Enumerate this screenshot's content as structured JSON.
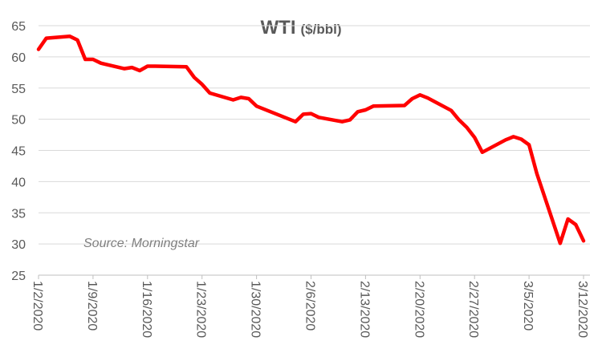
{
  "chart_data": {
    "type": "line",
    "title": "WTI",
    "title_unit": "($/bbl)",
    "xlabel": "",
    "ylabel": "",
    "annotation": "Source: Morningstar",
    "ylim": [
      25,
      65
    ],
    "y_ticks": [
      25,
      30,
      35,
      40,
      45,
      50,
      55,
      60,
      65
    ],
    "x_tick_labels": [
      "1/2/2020",
      "1/9/2020",
      "1/16/2020",
      "1/23/2020",
      "1/30/2020",
      "2/6/2020",
      "2/13/2020",
      "2/20/2020",
      "2/27/2020",
      "3/5/2020",
      "3/12/2020"
    ],
    "grid": "horizontal",
    "legend": "none",
    "series": [
      {
        "color": "#ff0000",
        "points": [
          [
            "2020-01-02",
            61.2
          ],
          [
            "2020-01-03",
            63.0
          ],
          [
            "2020-01-06",
            63.3
          ],
          [
            "2020-01-07",
            62.7
          ],
          [
            "2020-01-08",
            59.6
          ],
          [
            "2020-01-09",
            59.6
          ],
          [
            "2020-01-10",
            59.0
          ],
          [
            "2020-01-13",
            58.1
          ],
          [
            "2020-01-14",
            58.3
          ],
          [
            "2020-01-15",
            57.8
          ],
          [
            "2020-01-16",
            58.5
          ],
          [
            "2020-01-17",
            58.5
          ],
          [
            "2020-01-21",
            58.4
          ],
          [
            "2020-01-22",
            56.7
          ],
          [
            "2020-01-23",
            55.6
          ],
          [
            "2020-01-24",
            54.2
          ],
          [
            "2020-01-27",
            53.1
          ],
          [
            "2020-01-28",
            53.5
          ],
          [
            "2020-01-29",
            53.3
          ],
          [
            "2020-01-30",
            52.1
          ],
          [
            "2020-01-31",
            51.6
          ],
          [
            "2020-02-03",
            50.1
          ],
          [
            "2020-02-04",
            49.6
          ],
          [
            "2020-02-05",
            50.8
          ],
          [
            "2020-02-06",
            50.9
          ],
          [
            "2020-02-07",
            50.3
          ],
          [
            "2020-02-10",
            49.6
          ],
          [
            "2020-02-11",
            49.9
          ],
          [
            "2020-02-12",
            51.2
          ],
          [
            "2020-02-13",
            51.5
          ],
          [
            "2020-02-14",
            52.1
          ],
          [
            "2020-02-18",
            52.2
          ],
          [
            "2020-02-19",
            53.3
          ],
          [
            "2020-02-20",
            53.9
          ],
          [
            "2020-02-21",
            53.4
          ],
          [
            "2020-02-24",
            51.4
          ],
          [
            "2020-02-25",
            49.9
          ],
          [
            "2020-02-26",
            48.7
          ],
          [
            "2020-02-27",
            47.1
          ],
          [
            "2020-02-28",
            44.7
          ],
          [
            "2020-03-02",
            46.7
          ],
          [
            "2020-03-03",
            47.2
          ],
          [
            "2020-03-04",
            46.8
          ],
          [
            "2020-03-05",
            45.9
          ],
          [
            "2020-03-06",
            41.3
          ],
          [
            "2020-03-09",
            30.1
          ],
          [
            "2020-03-10",
            34.0
          ],
          [
            "2020-03-11",
            33.1
          ],
          [
            "2020-03-12",
            30.5
          ]
        ]
      }
    ]
  }
}
